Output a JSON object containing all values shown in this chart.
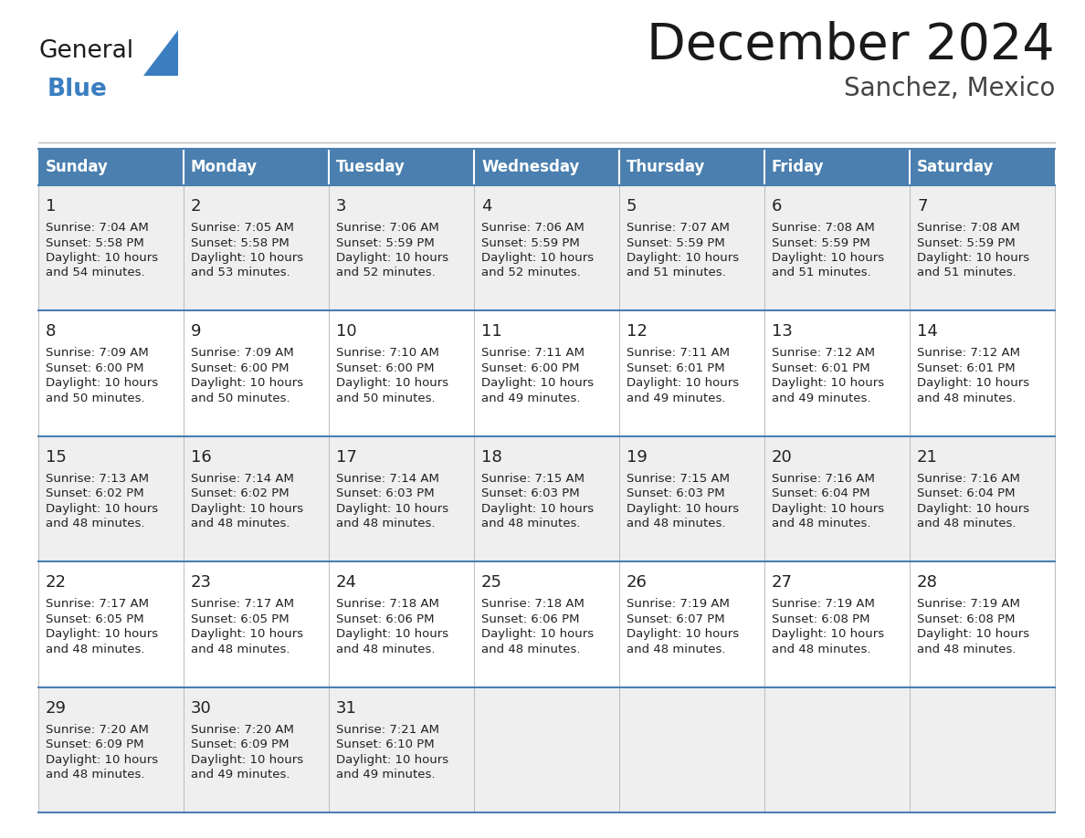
{
  "title": "December 2024",
  "subtitle": "Sanchez, Mexico",
  "days_of_week": [
    "Sunday",
    "Monday",
    "Tuesday",
    "Wednesday",
    "Thursday",
    "Friday",
    "Saturday"
  ],
  "header_bg": "#4A7FAF",
  "header_text": "#FFFFFF",
  "cell_bg_odd": "#EFEFEF",
  "cell_bg_even": "#FFFFFF",
  "day_number_color": "#222222",
  "info_text_color": "#222222",
  "border_color": "#4A7FAF",
  "sep_color": "#BBBBBB",
  "logo_general_color": "#1a1a1a",
  "logo_blue_color": "#3A7EC0",
  "logo_triangle_color": "#3A7EC0",
  "title_color": "#1a1a1a",
  "subtitle_color": "#444444",
  "calendar_data": [
    {
      "day": 1,
      "col": 0,
      "row": 0,
      "sunrise": "7:04 AM",
      "sunset": "5:58 PM",
      "daylight_minutes": "54 minutes."
    },
    {
      "day": 2,
      "col": 1,
      "row": 0,
      "sunrise": "7:05 AM",
      "sunset": "5:58 PM",
      "daylight_minutes": "53 minutes."
    },
    {
      "day": 3,
      "col": 2,
      "row": 0,
      "sunrise": "7:06 AM",
      "sunset": "5:59 PM",
      "daylight_minutes": "52 minutes."
    },
    {
      "day": 4,
      "col": 3,
      "row": 0,
      "sunrise": "7:06 AM",
      "sunset": "5:59 PM",
      "daylight_minutes": "52 minutes."
    },
    {
      "day": 5,
      "col": 4,
      "row": 0,
      "sunrise": "7:07 AM",
      "sunset": "5:59 PM",
      "daylight_minutes": "51 minutes."
    },
    {
      "day": 6,
      "col": 5,
      "row": 0,
      "sunrise": "7:08 AM",
      "sunset": "5:59 PM",
      "daylight_minutes": "51 minutes."
    },
    {
      "day": 7,
      "col": 6,
      "row": 0,
      "sunrise": "7:08 AM",
      "sunset": "5:59 PM",
      "daylight_minutes": "51 minutes."
    },
    {
      "day": 8,
      "col": 0,
      "row": 1,
      "sunrise": "7:09 AM",
      "sunset": "6:00 PM",
      "daylight_minutes": "50 minutes."
    },
    {
      "day": 9,
      "col": 1,
      "row": 1,
      "sunrise": "7:09 AM",
      "sunset": "6:00 PM",
      "daylight_minutes": "50 minutes."
    },
    {
      "day": 10,
      "col": 2,
      "row": 1,
      "sunrise": "7:10 AM",
      "sunset": "6:00 PM",
      "daylight_minutes": "50 minutes."
    },
    {
      "day": 11,
      "col": 3,
      "row": 1,
      "sunrise": "7:11 AM",
      "sunset": "6:00 PM",
      "daylight_minutes": "49 minutes."
    },
    {
      "day": 12,
      "col": 4,
      "row": 1,
      "sunrise": "7:11 AM",
      "sunset": "6:01 PM",
      "daylight_minutes": "49 minutes."
    },
    {
      "day": 13,
      "col": 5,
      "row": 1,
      "sunrise": "7:12 AM",
      "sunset": "6:01 PM",
      "daylight_minutes": "49 minutes."
    },
    {
      "day": 14,
      "col": 6,
      "row": 1,
      "sunrise": "7:12 AM",
      "sunset": "6:01 PM",
      "daylight_minutes": "48 minutes."
    },
    {
      "day": 15,
      "col": 0,
      "row": 2,
      "sunrise": "7:13 AM",
      "sunset": "6:02 PM",
      "daylight_minutes": "48 minutes."
    },
    {
      "day": 16,
      "col": 1,
      "row": 2,
      "sunrise": "7:14 AM",
      "sunset": "6:02 PM",
      "daylight_minutes": "48 minutes."
    },
    {
      "day": 17,
      "col": 2,
      "row": 2,
      "sunrise": "7:14 AM",
      "sunset": "6:03 PM",
      "daylight_minutes": "48 minutes."
    },
    {
      "day": 18,
      "col": 3,
      "row": 2,
      "sunrise": "7:15 AM",
      "sunset": "6:03 PM",
      "daylight_minutes": "48 minutes."
    },
    {
      "day": 19,
      "col": 4,
      "row": 2,
      "sunrise": "7:15 AM",
      "sunset": "6:03 PM",
      "daylight_minutes": "48 minutes."
    },
    {
      "day": 20,
      "col": 5,
      "row": 2,
      "sunrise": "7:16 AM",
      "sunset": "6:04 PM",
      "daylight_minutes": "48 minutes."
    },
    {
      "day": 21,
      "col": 6,
      "row": 2,
      "sunrise": "7:16 AM",
      "sunset": "6:04 PM",
      "daylight_minutes": "48 minutes."
    },
    {
      "day": 22,
      "col": 0,
      "row": 3,
      "sunrise": "7:17 AM",
      "sunset": "6:05 PM",
      "daylight_minutes": "48 minutes."
    },
    {
      "day": 23,
      "col": 1,
      "row": 3,
      "sunrise": "7:17 AM",
      "sunset": "6:05 PM",
      "daylight_minutes": "48 minutes."
    },
    {
      "day": 24,
      "col": 2,
      "row": 3,
      "sunrise": "7:18 AM",
      "sunset": "6:06 PM",
      "daylight_minutes": "48 minutes."
    },
    {
      "day": 25,
      "col": 3,
      "row": 3,
      "sunrise": "7:18 AM",
      "sunset": "6:06 PM",
      "daylight_minutes": "48 minutes."
    },
    {
      "day": 26,
      "col": 4,
      "row": 3,
      "sunrise": "7:19 AM",
      "sunset": "6:07 PM",
      "daylight_minutes": "48 minutes."
    },
    {
      "day": 27,
      "col": 5,
      "row": 3,
      "sunrise": "7:19 AM",
      "sunset": "6:08 PM",
      "daylight_minutes": "48 minutes."
    },
    {
      "day": 28,
      "col": 6,
      "row": 3,
      "sunrise": "7:19 AM",
      "sunset": "6:08 PM",
      "daylight_minutes": "48 minutes."
    },
    {
      "day": 29,
      "col": 0,
      "row": 4,
      "sunrise": "7:20 AM",
      "sunset": "6:09 PM",
      "daylight_minutes": "48 minutes."
    },
    {
      "day": 30,
      "col": 1,
      "row": 4,
      "sunrise": "7:20 AM",
      "sunset": "6:09 PM",
      "daylight_minutes": "49 minutes."
    },
    {
      "day": 31,
      "col": 2,
      "row": 4,
      "sunrise": "7:21 AM",
      "sunset": "6:10 PM",
      "daylight_minutes": "49 minutes."
    }
  ],
  "num_rows": 5,
  "num_cols": 7
}
